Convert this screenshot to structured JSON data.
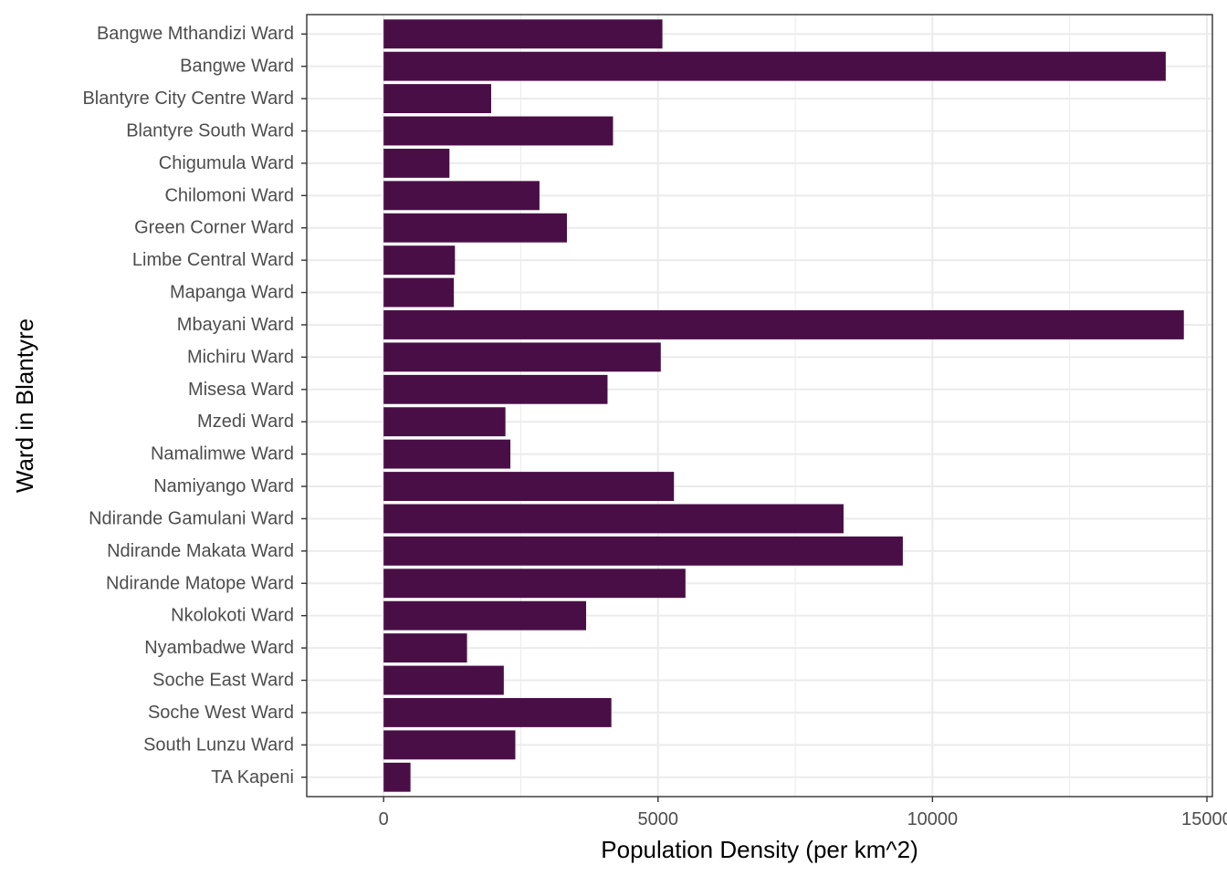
{
  "chart_data": {
    "type": "bar",
    "orientation": "horizontal",
    "xlabel": "Population Density (per km^2)",
    "ylabel": "Ward in Blantyre",
    "xlim": [
      -1400,
      15100
    ],
    "xticks": [
      0,
      5000,
      10000,
      15000
    ],
    "grid": true,
    "legend": "none",
    "bar_color": "#4A0E47",
    "categories": [
      "Bangwe Mthandizi Ward",
      "Bangwe Ward",
      "Blantyre City Centre Ward",
      "Blantyre South Ward",
      "Chigumula Ward",
      "Chilomoni Ward",
      "Green Corner Ward",
      "Limbe Central Ward",
      "Mapanga Ward",
      "Mbayani Ward",
      "Michiru Ward",
      "Misesa Ward",
      "Mzedi Ward",
      "Namalimwe Ward",
      "Namiyango Ward",
      "Ndirande Gamulani Ward",
      "Ndirande Makata Ward",
      "Ndirande Matope Ward",
      "Nkolokoti Ward",
      "Nyambadwe Ward",
      "Soche East Ward",
      "Soche West Ward",
      "South Lunzu Ward",
      "TA Kapeni"
    ],
    "values": [
      5080,
      14250,
      1960,
      4180,
      1200,
      2840,
      3340,
      1300,
      1280,
      14580,
      5050,
      4080,
      2220,
      2310,
      5290,
      8380,
      9460,
      5500,
      3690,
      1520,
      2190,
      4150,
      2400,
      490
    ]
  }
}
